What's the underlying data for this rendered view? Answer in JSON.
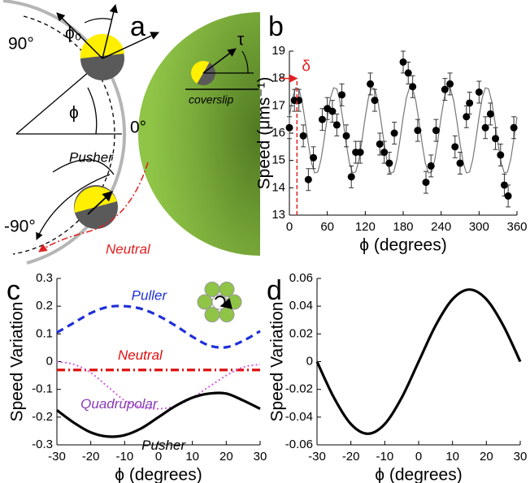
{
  "diagram_a": {
    "letter": "a",
    "angle_top": "90°",
    "phi0": "ϕ₀",
    "phi": "ϕ",
    "zero": "0°",
    "pusher": "Pusher",
    "angle_bottom": "-90°",
    "neutral": "Neutral",
    "tau": "τ",
    "coverslip": "coverslip"
  },
  "chart_data": [
    {
      "type": "scatter",
      "panel_label": "b",
      "xlabel": "ϕ (degrees)",
      "ylabel": "Speed (μms⁻¹)",
      "xlim": [
        0,
        360
      ],
      "xticks": [
        0,
        60,
        120,
        180,
        240,
        300,
        360
      ],
      "ylim": [
        13,
        19
      ],
      "yticks": [
        13,
        14,
        15,
        16,
        17,
        18,
        19
      ],
      "color": "#000000",
      "annotation": {
        "label": "δ",
        "x": 12,
        "color": "#e02020"
      },
      "x": [
        0,
        8,
        15,
        22,
        30,
        38,
        52,
        60,
        68,
        75,
        83,
        90,
        98,
        105,
        112,
        128,
        135,
        143,
        150,
        158,
        166,
        180,
        188,
        195,
        203,
        216,
        224,
        232,
        246,
        254,
        262,
        270,
        280,
        285,
        300,
        310,
        318,
        326,
        334,
        340,
        346,
        355
      ],
      "values": [
        16.2,
        17.2,
        17.2,
        15.9,
        14.3,
        15.1,
        16.5,
        16.9,
        16.8,
        16.3,
        17.4,
        15.9,
        14.4,
        15.3,
        15.3,
        17.8,
        17.2,
        15.6,
        15.3,
        14.9,
        16.0,
        18.6,
        18.2,
        17.7,
        16.1,
        14.2,
        14.8,
        16.1,
        17.6,
        17.8,
        15.5,
        14.9,
        16.6,
        17.1,
        17.5,
        16.2,
        16.7,
        15.8,
        15.2,
        14.1,
        13.7,
        16.2
      ],
      "errors": [
        0.4,
        0.4,
        0.4,
        0.4,
        0.4,
        0.4,
        0.4,
        0.4,
        0.4,
        0.4,
        0.4,
        0.4,
        0.4,
        0.4,
        0.4,
        0.4,
        0.4,
        0.4,
        0.4,
        0.4,
        0.4,
        0.4,
        0.4,
        0.4,
        0.4,
        0.4,
        0.4,
        0.4,
        0.4,
        0.4,
        0.4,
        0.4,
        0.4,
        0.4,
        0.4,
        0.4,
        0.4,
        0.4,
        0.4,
        0.4,
        0.4,
        0.4
      ],
      "fit": {
        "color": "#777777",
        "x": [
          0,
          5,
          10,
          15,
          20,
          25,
          30,
          35,
          40,
          45,
          50,
          55,
          60,
          65,
          70,
          75,
          80,
          85,
          90,
          95,
          100,
          105,
          110,
          115,
          120,
          125,
          130,
          135,
          140,
          145,
          150,
          155,
          160,
          165,
          170,
          175,
          180,
          185,
          190,
          195,
          200,
          205,
          210,
          215,
          220,
          225,
          230,
          235,
          240,
          245,
          250,
          255,
          260,
          265,
          270,
          275,
          280,
          285,
          290,
          295,
          300,
          305,
          310,
          315,
          320,
          325,
          330,
          335,
          340,
          345,
          350,
          355,
          360
        ],
        "values": [
          16.59,
          17.29,
          17.66,
          17.62,
          17.17,
          16.43,
          15.61,
          14.91,
          14.54,
          14.58,
          15.03,
          15.77,
          16.59,
          17.29,
          17.66,
          17.62,
          17.17,
          16.43,
          15.61,
          14.91,
          14.54,
          14.58,
          15.03,
          15.77,
          16.59,
          17.29,
          17.66,
          17.62,
          17.17,
          16.43,
          15.61,
          14.91,
          14.54,
          14.58,
          15.03,
          15.77,
          16.59,
          17.29,
          17.66,
          17.62,
          17.17,
          16.43,
          15.61,
          14.91,
          14.54,
          14.58,
          15.03,
          15.77,
          16.59,
          17.29,
          17.66,
          17.62,
          17.17,
          16.43,
          15.61,
          14.91,
          14.54,
          14.58,
          15.03,
          15.77,
          16.59,
          17.29,
          17.66,
          17.62,
          17.17,
          16.43,
          15.61,
          14.91,
          14.54,
          14.58,
          15.03,
          15.77,
          16.59
        ]
      }
    },
    {
      "type": "line",
      "panel_label": "c",
      "xlabel": "ϕ (degrees)",
      "ylabel": "Speed Variation",
      "xlim": [
        -30,
        30
      ],
      "xticks": [
        -30,
        -20,
        -10,
        0,
        10,
        20,
        30
      ],
      "ylim": [
        -0.3,
        0.3
      ],
      "yticks": [
        -0.3,
        -0.2,
        -0.1,
        0,
        0.1,
        0.2,
        0.3
      ],
      "x": [
        -30,
        -25,
        -20,
        -15,
        -10,
        -5,
        0,
        5,
        10,
        15,
        20,
        25,
        30
      ],
      "series": [
        {
          "name": "Puller",
          "color": "#1f2fd8",
          "dash": "9 6",
          "values": [
            0.105,
            0.14,
            0.175,
            0.197,
            0.2,
            0.19,
            0.165,
            0.13,
            0.09,
            0.058,
            0.052,
            0.075,
            0.11
          ]
        },
        {
          "name": "Neutral",
          "color": "#e01010",
          "dash": "10 4 2 4",
          "values": [
            -0.03,
            -0.03,
            -0.03,
            -0.03,
            -0.03,
            -0.03,
            -0.03,
            -0.03,
            -0.03,
            -0.03,
            -0.03,
            -0.03,
            -0.03
          ]
        },
        {
          "name": "Quadrupolar",
          "color": "#d060e0",
          "dash": "2 3",
          "values": [
            0.0,
            -0.01,
            -0.04,
            -0.09,
            -0.14,
            -0.165,
            -0.17,
            -0.16,
            -0.13,
            -0.09,
            -0.05,
            -0.02,
            -0.01
          ]
        },
        {
          "name": "Pusher",
          "color": "#000000",
          "dash": "",
          "values": [
            -0.175,
            -0.22,
            -0.255,
            -0.27,
            -0.265,
            -0.24,
            -0.2,
            -0.16,
            -0.13,
            -0.115,
            -0.115,
            -0.14,
            -0.17
          ]
        }
      ]
    },
    {
      "type": "line",
      "panel_label": "d",
      "xlabel": "ϕ (degrees)",
      "ylabel": "Speed Variation",
      "xlim": [
        -30,
        30
      ],
      "xticks": [
        -30,
        -20,
        -10,
        0,
        10,
        20,
        30
      ],
      "ylim": [
        -0.06,
        0.06
      ],
      "yticks": [
        -0.06,
        -0.04,
        -0.02,
        0,
        0.02,
        0.04,
        0.06
      ],
      "x": [
        -30,
        -25,
        -20,
        -15,
        -10,
        -5,
        0,
        5,
        10,
        15,
        20,
        25,
        30
      ],
      "series": [
        {
          "color": "#000000",
          "dash": "",
          "values": [
            0,
            -0.026,
            -0.045,
            -0.052,
            -0.045,
            -0.026,
            0,
            0.026,
            0.045,
            0.052,
            0.045,
            0.026,
            0
          ]
        }
      ]
    }
  ]
}
